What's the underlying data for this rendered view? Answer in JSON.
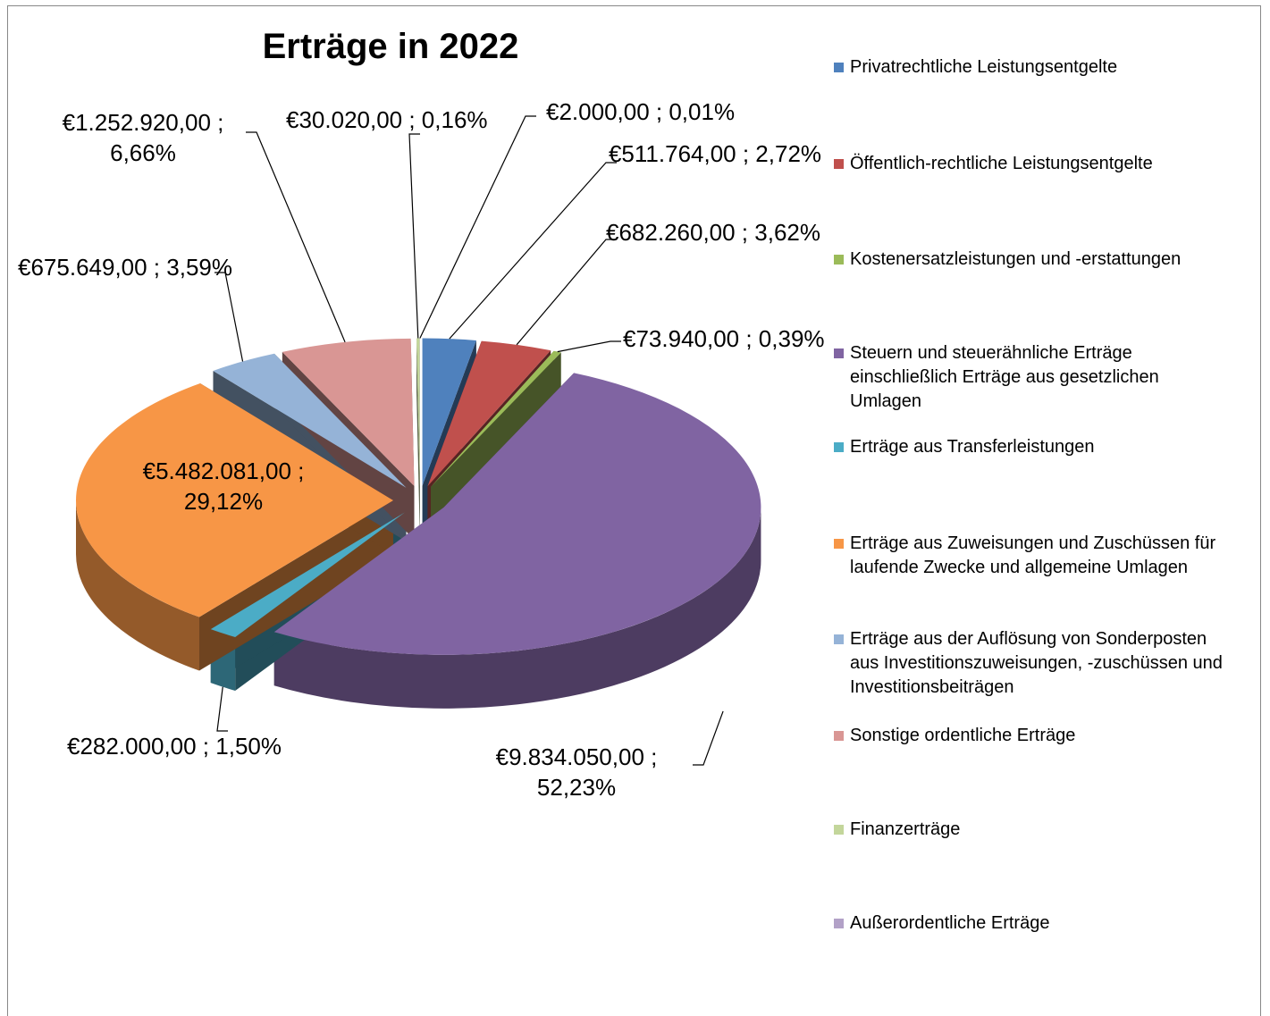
{
  "chart_data": {
    "type": "pie",
    "title": "Erträge in 2022",
    "categories": [
      "Privatrechtliche Leistungsentgelte",
      "Öffentlich-rechtliche Leistungsentgelte",
      "Kostenersatzleistungen und -erstattungen",
      "Steuern und steuerähnliche Erträge einschließlich Erträge aus gesetzlichen Umlagen",
      "Erträge aus Transferleistungen",
      "Erträge aus Zuweisungen und Zuschüssen für laufende Zwecke und allgemeine Umlagen",
      "Erträge aus der Auflösung von Sonderposten aus Investitionszuweisungen, -zuschüssen und Investitionsbeiträgen",
      "Sonstige ordentliche Erträge",
      "Finanzerträge",
      "Außerordentliche Erträge"
    ],
    "values": [
      511764,
      682260,
      73940,
      9834050,
      282000,
      5482081,
      675649,
      1252920,
      30020,
      2000
    ],
    "value_labels": [
      "€511.764,00 ; 2,72%",
      "€682.260,00 ; 3,62%",
      "€73.940,00 ; 0,39%",
      "€9.834.050,00 ; 52,23%",
      "€282.000,00 ; 1,50%",
      "€5.482.081,00 ; 29,12%",
      "€675.649,00 ; 3,59%",
      "€1.252.920,00 ; 6,66%",
      "€30.020,00 ; 0,16%",
      "€2.000,00 ; 0,01%"
    ],
    "colors": [
      "#4f81bd",
      "#c0504d",
      "#9bbb59",
      "#8064a2",
      "#4bacc6",
      "#f79646",
      "#95b3d7",
      "#d99694",
      "#c3d69b",
      "#b2a1c7"
    ],
    "legend": "right"
  }
}
